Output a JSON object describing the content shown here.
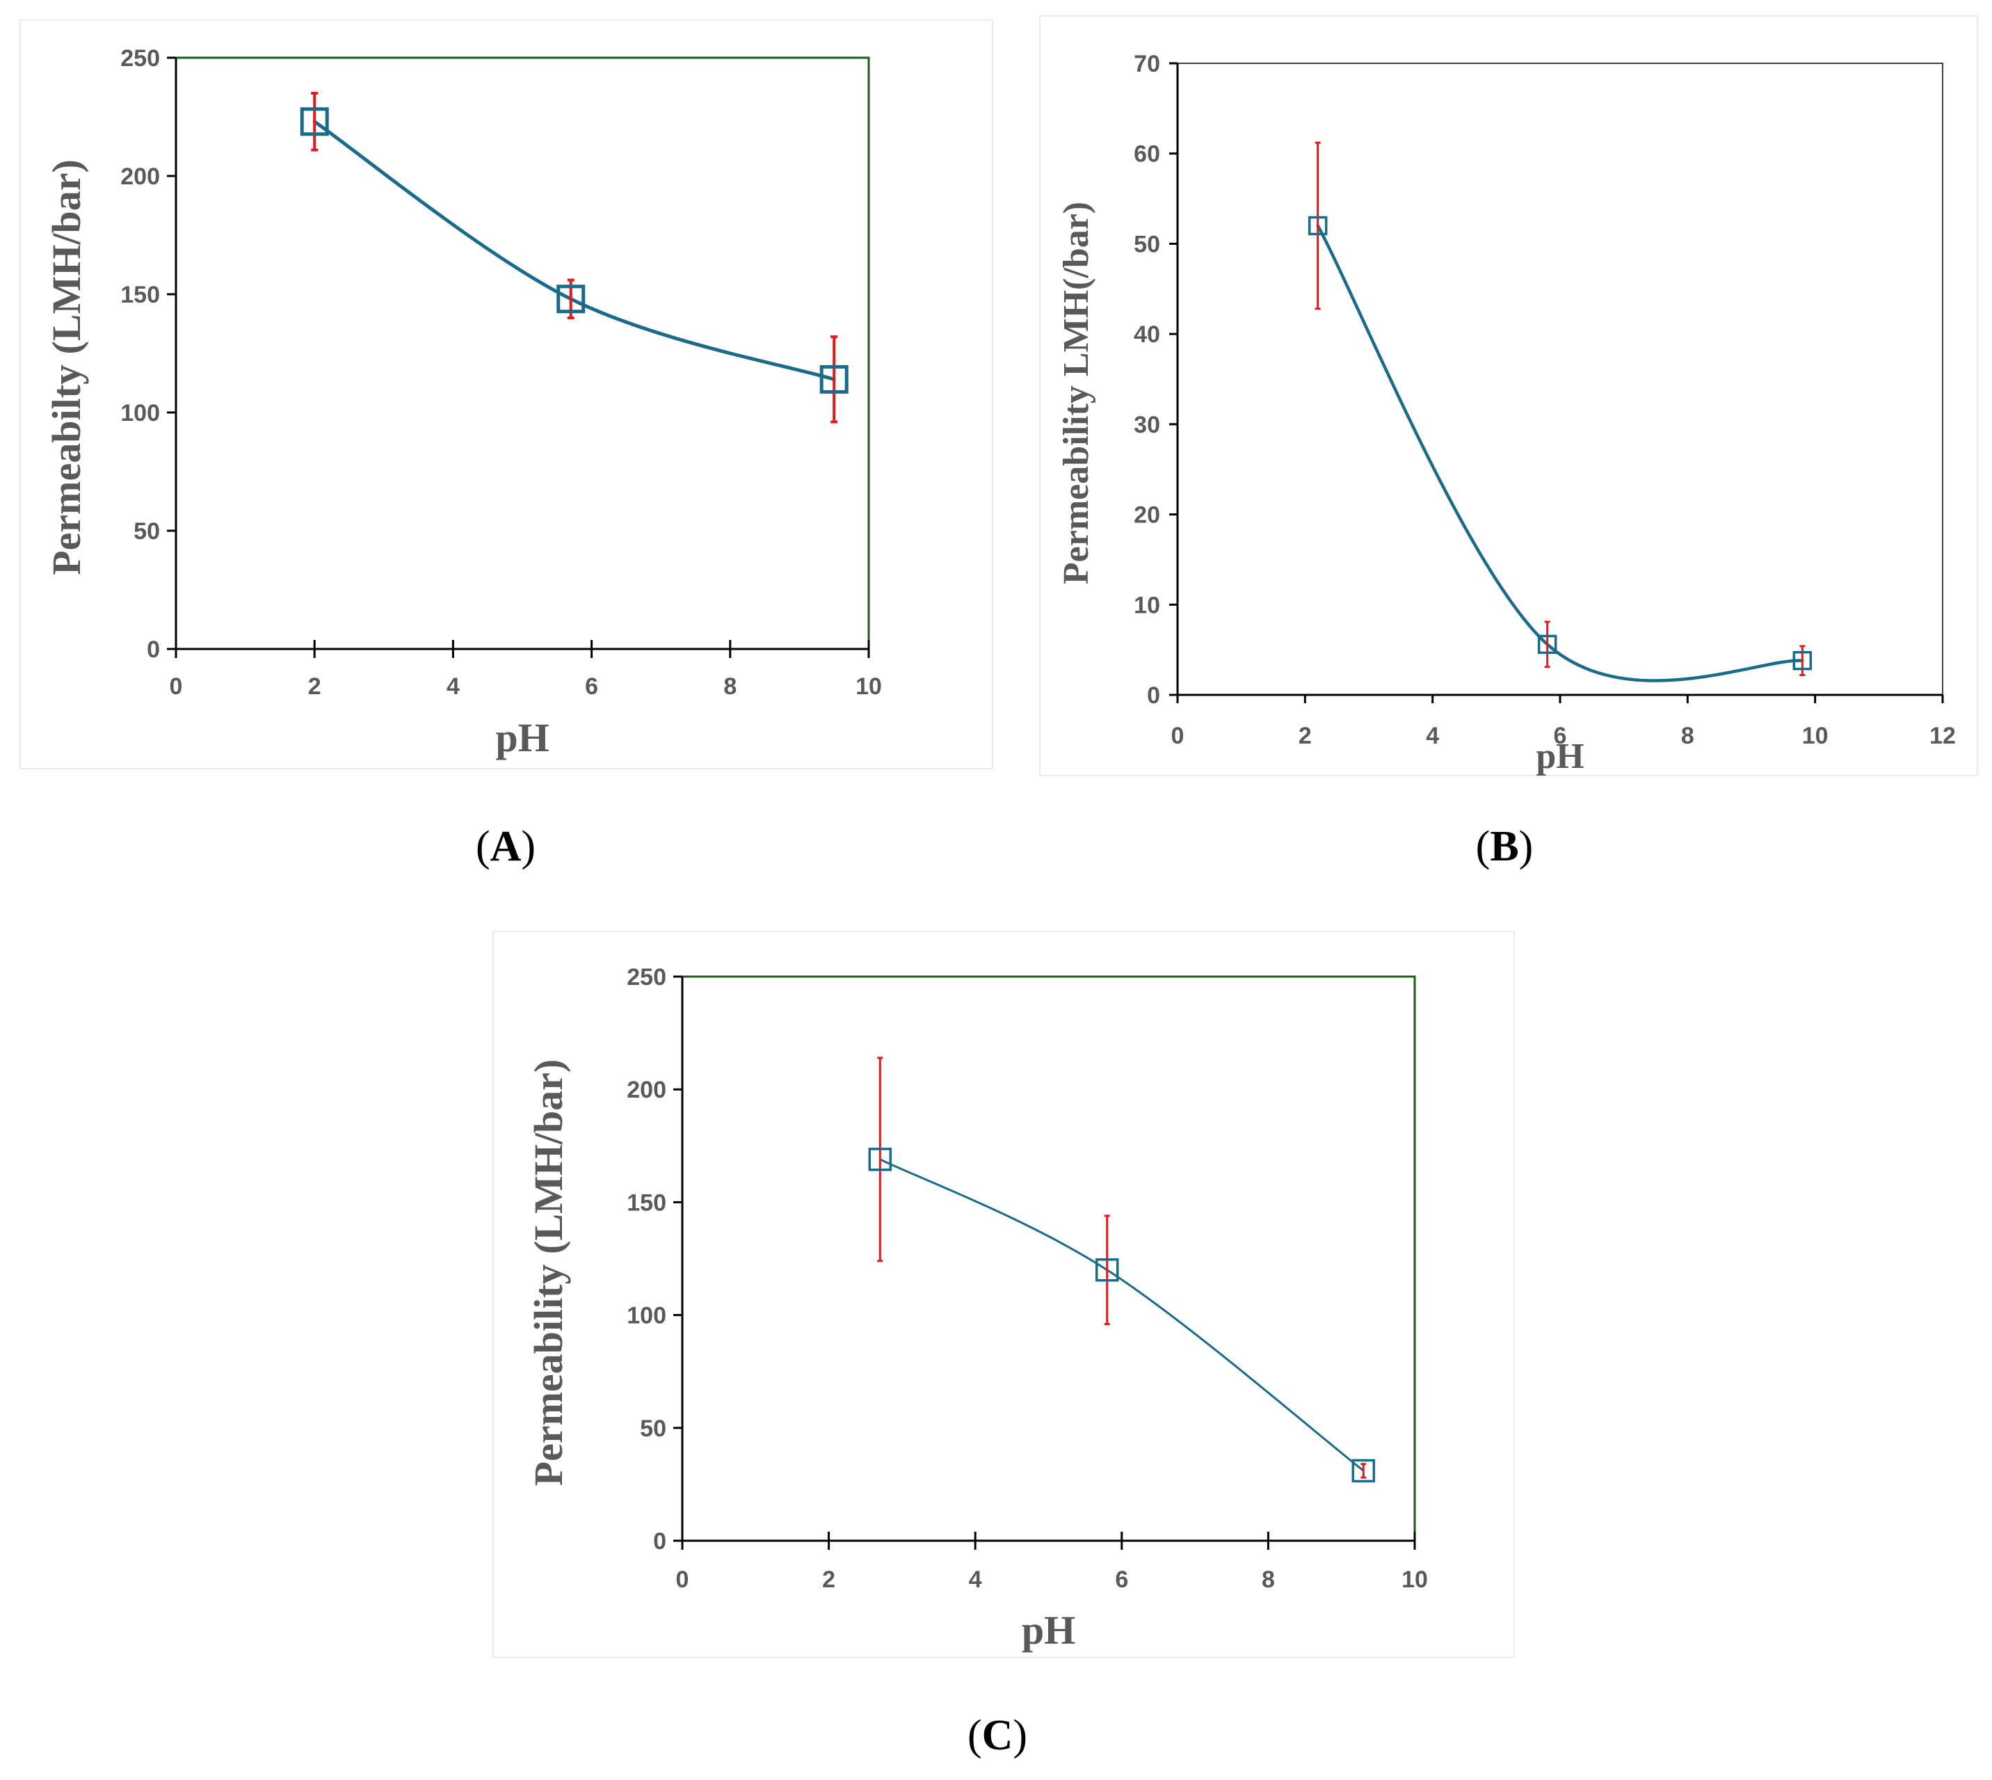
{
  "colors": {
    "series": "#1a6a8a",
    "error_bar": "#e31a1c",
    "frame_green": "#1e5a1e",
    "axis": "#000000",
    "text": "#595959"
  },
  "chart_data": [
    {
      "id": "A",
      "type": "scatter",
      "caption_letter": "A",
      "xlabel": "pH",
      "ylabel": "Permeabilty (LMH/bar)",
      "xlim": [
        0,
        10
      ],
      "ylim": [
        0,
        250
      ],
      "xticks": [
        0,
        2,
        4,
        6,
        8,
        10
      ],
      "yticks": [
        0,
        50,
        100,
        150,
        200,
        250
      ],
      "xtick_labels": [
        "0",
        "2",
        "4",
        "6",
        "8",
        "10"
      ],
      "ytick_labels": [
        "0",
        "50",
        "100",
        "150",
        "200",
        "250"
      ],
      "frame": "green-box",
      "line": "smooth",
      "marker": "square",
      "series": [
        {
          "name": "Permeability",
          "x": [
            2.0,
            5.7,
            9.5
          ],
          "y": [
            223,
            148,
            114
          ],
          "error": [
            12,
            8,
            18
          ]
        }
      ]
    },
    {
      "id": "B",
      "type": "scatter",
      "caption_letter": "B",
      "xlabel": "pH",
      "ylabel": "Permeability LMH(/bar)",
      "xlim": [
        0,
        12
      ],
      "ylim": [
        0,
        70
      ],
      "xticks": [
        0,
        2,
        4,
        6,
        8,
        10,
        12
      ],
      "yticks": [
        0,
        10,
        20,
        30,
        40,
        50,
        60,
        70
      ],
      "xtick_labels": [
        "0",
        "2",
        "4",
        "6",
        "8",
        "10",
        "12"
      ],
      "ytick_labels": [
        "0",
        "10",
        "20",
        "30",
        "40",
        "50",
        "60",
        "70"
      ],
      "frame": "gray-box",
      "line": "smooth",
      "marker": "square",
      "series": [
        {
          "name": "Permeability",
          "x": [
            2.2,
            5.8,
            9.8
          ],
          "y": [
            52,
            5.6,
            3.8
          ],
          "error": [
            9.2,
            2.5,
            1.6
          ]
        }
      ]
    },
    {
      "id": "C",
      "type": "scatter",
      "caption_letter": "C",
      "xlabel": "pH",
      "ylabel": "Permeability (LMH/bar)",
      "xlim": [
        0,
        10
      ],
      "ylim": [
        0,
        250
      ],
      "xticks": [
        0,
        2,
        4,
        6,
        8,
        10
      ],
      "yticks": [
        0,
        50,
        100,
        150,
        200,
        250
      ],
      "xtick_labels": [
        "0",
        "2",
        "4",
        "6",
        "8",
        "10"
      ],
      "ytick_labels": [
        "0",
        "50",
        "100",
        "150",
        "200",
        "250"
      ],
      "frame": "green-box",
      "line": "smooth",
      "marker": "square",
      "series": [
        {
          "name": "Permeability",
          "x": [
            2.7,
            5.8,
            9.3
          ],
          "y": [
            169,
            120,
            31
          ],
          "error": [
            45,
            24,
            3
          ]
        }
      ]
    }
  ]
}
